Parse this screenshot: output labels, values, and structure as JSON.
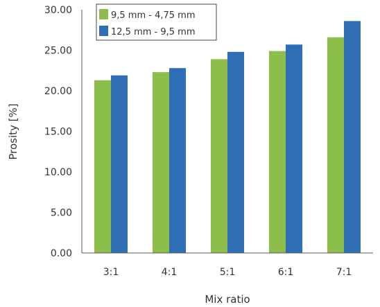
{
  "chart_data": {
    "type": "bar",
    "title": "",
    "xlabel": "Mix ratio",
    "ylabel": "Prosity [%]",
    "categories": [
      "3:1",
      "4:1",
      "5:1",
      "6:1",
      "7:1"
    ],
    "ylim": [
      0,
      30
    ],
    "yticks": [
      "0.00",
      "5.00",
      "10.00",
      "15.00",
      "20.00",
      "25.00",
      "30.00"
    ],
    "grid": false,
    "legend_position": "top-left",
    "series": [
      {
        "name": "9,5 mm - 4,75 mm",
        "color": "#8dbd4a",
        "values": [
          21.3,
          22.3,
          23.9,
          24.9,
          26.6
        ]
      },
      {
        "name": "12,5 mm - 9,5 mm",
        "color": "#2f6db5",
        "values": [
          21.9,
          22.8,
          24.8,
          25.7,
          28.6
        ]
      }
    ]
  }
}
